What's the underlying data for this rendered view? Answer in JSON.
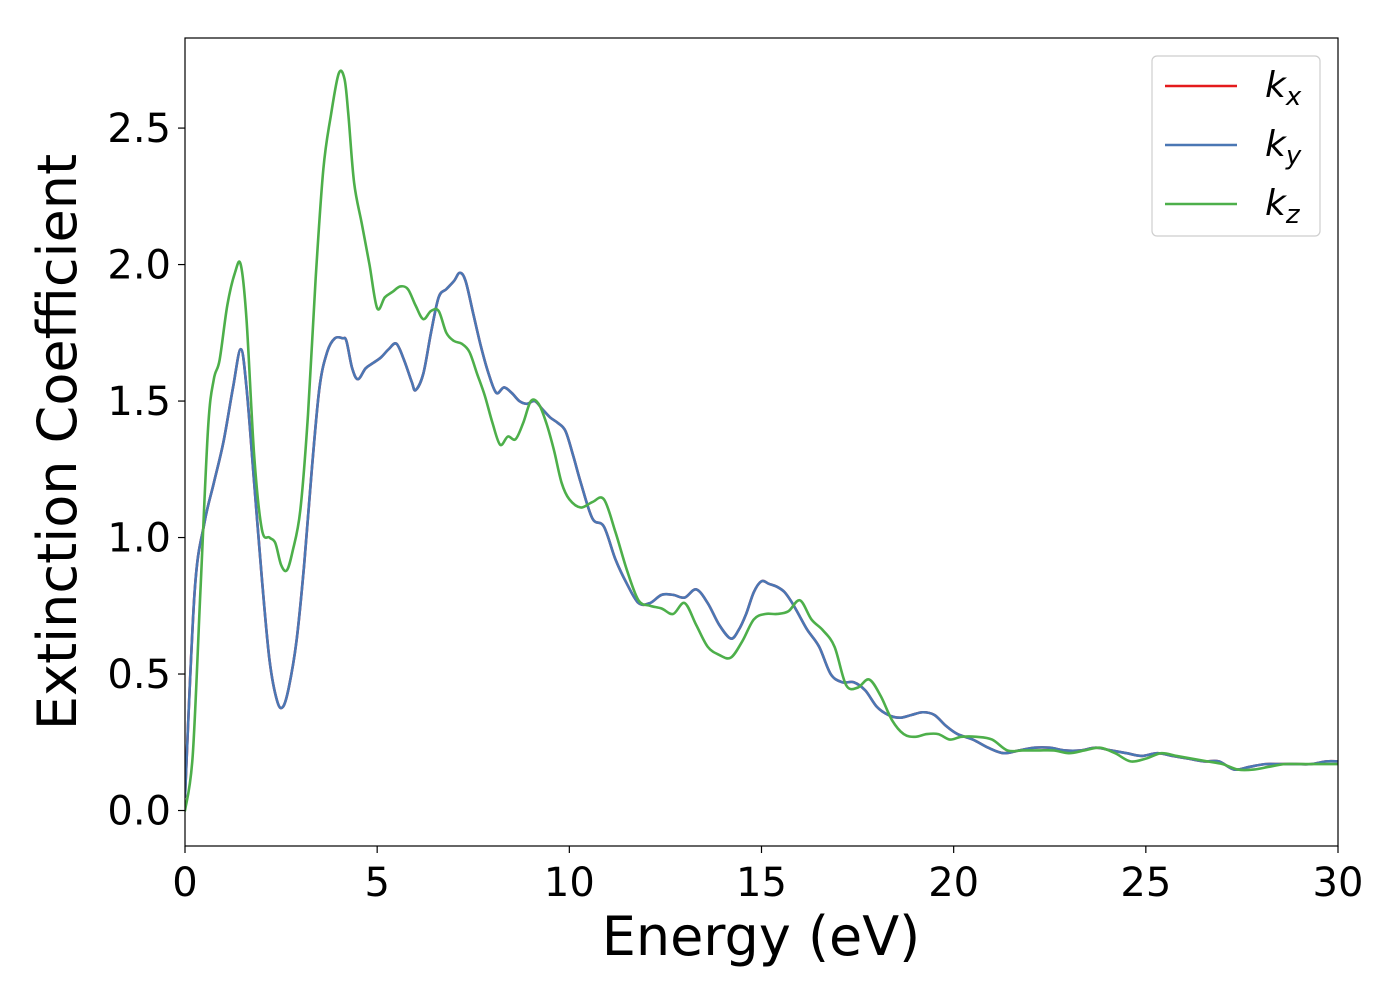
{
  "chart_data": {
    "type": "line",
    "xlabel": "Energy (eV)",
    "ylabel": "Extinction Coefficient",
    "xlim": [
      0,
      30
    ],
    "ylim": [
      -0.13,
      2.83
    ],
    "xticks": [
      0,
      5,
      10,
      15,
      20,
      25,
      30
    ],
    "yticks": [
      0.0,
      0.5,
      1.0,
      1.5,
      2.0,
      2.5
    ],
    "xtick_labels": [
      "0",
      "5",
      "10",
      "15",
      "20",
      "25",
      "30"
    ],
    "ytick_labels": [
      "0.0",
      "0.5",
      "1.0",
      "1.5",
      "2.0",
      "2.5"
    ],
    "grid": false,
    "legend_position": "top-right",
    "series": [
      {
        "name": "k_x",
        "legend_main": "k",
        "legend_sub": "x",
        "color": "#e41a1c",
        "x": [
          0,
          0.25,
          0.5,
          0.75,
          1.0,
          1.25,
          1.45,
          1.6,
          1.8,
          2.0,
          2.2,
          2.4,
          2.55,
          2.7,
          2.9,
          3.1,
          3.3,
          3.5,
          3.7,
          3.9,
          4.1,
          4.2,
          4.35,
          4.5,
          4.7,
          4.9,
          5.1,
          5.3,
          5.5,
          5.7,
          5.9,
          6.0,
          6.2,
          6.4,
          6.6,
          6.8,
          7.0,
          7.15,
          7.3,
          7.5,
          7.7,
          7.9,
          8.1,
          8.3,
          8.5,
          8.7,
          8.9,
          9.1,
          9.3,
          9.5,
          9.7,
          9.9,
          10.1,
          10.3,
          10.6,
          10.9,
          11.2,
          11.5,
          11.8,
          12.1,
          12.4,
          12.7,
          13.0,
          13.3,
          13.6,
          13.9,
          14.2,
          14.4,
          14.6,
          14.8,
          15.0,
          15.2,
          15.4,
          15.6,
          15.8,
          16.0,
          16.2,
          16.5,
          16.8,
          17.1,
          17.4,
          17.7,
          18.0,
          18.3,
          18.6,
          18.9,
          19.2,
          19.5,
          19.8,
          20.1,
          20.5,
          20.9,
          21.3,
          21.7,
          22.1,
          22.5,
          22.9,
          23.3,
          23.7,
          24.1,
          24.5,
          24.9,
          25.3,
          25.7,
          26.1,
          26.5,
          26.9,
          27.3,
          27.7,
          28.1,
          28.5,
          28.9,
          29.3,
          29.7,
          30.0
        ],
        "values": [
          0.05,
          0.8,
          1.05,
          1.2,
          1.35,
          1.55,
          1.69,
          1.55,
          1.2,
          0.85,
          0.55,
          0.4,
          0.38,
          0.45,
          0.62,
          0.9,
          1.25,
          1.55,
          1.68,
          1.73,
          1.73,
          1.72,
          1.62,
          1.58,
          1.62,
          1.64,
          1.66,
          1.69,
          1.71,
          1.65,
          1.57,
          1.54,
          1.6,
          1.75,
          1.88,
          1.91,
          1.94,
          1.97,
          1.94,
          1.82,
          1.7,
          1.6,
          1.53,
          1.55,
          1.53,
          1.5,
          1.49,
          1.5,
          1.47,
          1.44,
          1.42,
          1.39,
          1.3,
          1.2,
          1.07,
          1.04,
          0.92,
          0.83,
          0.76,
          0.76,
          0.79,
          0.79,
          0.78,
          0.81,
          0.76,
          0.68,
          0.63,
          0.66,
          0.72,
          0.8,
          0.84,
          0.83,
          0.82,
          0.8,
          0.76,
          0.71,
          0.66,
          0.6,
          0.5,
          0.47,
          0.47,
          0.44,
          0.38,
          0.35,
          0.34,
          0.35,
          0.36,
          0.35,
          0.31,
          0.28,
          0.26,
          0.23,
          0.21,
          0.22,
          0.23,
          0.23,
          0.22,
          0.22,
          0.23,
          0.22,
          0.21,
          0.2,
          0.21,
          0.2,
          0.19,
          0.18,
          0.18,
          0.15,
          0.16,
          0.17,
          0.17,
          0.17,
          0.17,
          0.18,
          0.18
        ]
      },
      {
        "name": "k_y",
        "legend_main": "k",
        "legend_sub": "y",
        "color": "#4a77b4",
        "x": [
          0,
          0.25,
          0.5,
          0.75,
          1.0,
          1.25,
          1.45,
          1.6,
          1.8,
          2.0,
          2.2,
          2.4,
          2.55,
          2.7,
          2.9,
          3.1,
          3.3,
          3.5,
          3.7,
          3.9,
          4.1,
          4.2,
          4.35,
          4.5,
          4.7,
          4.9,
          5.1,
          5.3,
          5.5,
          5.7,
          5.9,
          6.0,
          6.2,
          6.4,
          6.6,
          6.8,
          7.0,
          7.15,
          7.3,
          7.5,
          7.7,
          7.9,
          8.1,
          8.3,
          8.5,
          8.7,
          8.9,
          9.1,
          9.3,
          9.5,
          9.7,
          9.9,
          10.1,
          10.3,
          10.6,
          10.9,
          11.2,
          11.5,
          11.8,
          12.1,
          12.4,
          12.7,
          13.0,
          13.3,
          13.6,
          13.9,
          14.2,
          14.4,
          14.6,
          14.8,
          15.0,
          15.2,
          15.4,
          15.6,
          15.8,
          16.0,
          16.2,
          16.5,
          16.8,
          17.1,
          17.4,
          17.7,
          18.0,
          18.3,
          18.6,
          18.9,
          19.2,
          19.5,
          19.8,
          20.1,
          20.5,
          20.9,
          21.3,
          21.7,
          22.1,
          22.5,
          22.9,
          23.3,
          23.7,
          24.1,
          24.5,
          24.9,
          25.3,
          25.7,
          26.1,
          26.5,
          26.9,
          27.3,
          27.7,
          28.1,
          28.5,
          28.9,
          29.3,
          29.7,
          30.0
        ],
        "values": [
          0.05,
          0.8,
          1.05,
          1.2,
          1.35,
          1.55,
          1.69,
          1.55,
          1.2,
          0.85,
          0.55,
          0.4,
          0.38,
          0.45,
          0.62,
          0.9,
          1.25,
          1.55,
          1.68,
          1.73,
          1.73,
          1.72,
          1.62,
          1.58,
          1.62,
          1.64,
          1.66,
          1.69,
          1.71,
          1.65,
          1.57,
          1.54,
          1.6,
          1.75,
          1.88,
          1.91,
          1.94,
          1.97,
          1.94,
          1.82,
          1.7,
          1.6,
          1.53,
          1.55,
          1.53,
          1.5,
          1.49,
          1.5,
          1.47,
          1.44,
          1.42,
          1.39,
          1.3,
          1.2,
          1.07,
          1.04,
          0.92,
          0.83,
          0.76,
          0.76,
          0.79,
          0.79,
          0.78,
          0.81,
          0.76,
          0.68,
          0.63,
          0.66,
          0.72,
          0.8,
          0.84,
          0.83,
          0.82,
          0.8,
          0.76,
          0.71,
          0.66,
          0.6,
          0.5,
          0.47,
          0.47,
          0.44,
          0.38,
          0.35,
          0.34,
          0.35,
          0.36,
          0.35,
          0.31,
          0.28,
          0.26,
          0.23,
          0.21,
          0.22,
          0.23,
          0.23,
          0.22,
          0.22,
          0.23,
          0.22,
          0.21,
          0.2,
          0.21,
          0.2,
          0.19,
          0.18,
          0.18,
          0.15,
          0.16,
          0.17,
          0.17,
          0.17,
          0.17,
          0.18,
          0.18
        ]
      },
      {
        "name": "k_z",
        "legend_main": "k",
        "legend_sub": "z",
        "color": "#4daf4a",
        "x": [
          0,
          0.2,
          0.4,
          0.6,
          0.75,
          0.9,
          1.1,
          1.3,
          1.45,
          1.6,
          1.8,
          2.0,
          2.2,
          2.35,
          2.5,
          2.65,
          2.8,
          3.0,
          3.2,
          3.4,
          3.6,
          3.8,
          4.0,
          4.15,
          4.25,
          4.4,
          4.6,
          4.8,
          5.0,
          5.2,
          5.4,
          5.6,
          5.8,
          6.0,
          6.2,
          6.4,
          6.6,
          6.8,
          7.0,
          7.2,
          7.4,
          7.6,
          7.8,
          8.0,
          8.2,
          8.4,
          8.6,
          8.8,
          9.0,
          9.2,
          9.4,
          9.6,
          9.8,
          10.0,
          10.3,
          10.6,
          10.9,
          11.2,
          11.5,
          11.8,
          12.1,
          12.4,
          12.7,
          13.0,
          13.3,
          13.6,
          13.9,
          14.2,
          14.5,
          14.8,
          15.1,
          15.4,
          15.7,
          16.0,
          16.3,
          16.6,
          16.9,
          17.2,
          17.5,
          17.8,
          18.1,
          18.4,
          18.7,
          19.0,
          19.3,
          19.6,
          19.9,
          20.2,
          20.6,
          21.0,
          21.4,
          21.8,
          22.2,
          22.6,
          23.0,
          23.4,
          23.8,
          24.2,
          24.6,
          25.0,
          25.4,
          25.8,
          26.2,
          26.6,
          27.0,
          27.4,
          27.8,
          28.2,
          28.6,
          29.0,
          29.4,
          29.8,
          30.0
        ],
        "values": [
          0.0,
          0.2,
          0.8,
          1.4,
          1.58,
          1.65,
          1.85,
          1.97,
          2.0,
          1.8,
          1.3,
          1.03,
          1.0,
          0.98,
          0.9,
          0.88,
          0.95,
          1.1,
          1.45,
          1.95,
          2.35,
          2.55,
          2.7,
          2.68,
          2.55,
          2.3,
          2.15,
          2.0,
          1.84,
          1.88,
          1.9,
          1.92,
          1.91,
          1.85,
          1.8,
          1.83,
          1.83,
          1.75,
          1.72,
          1.71,
          1.68,
          1.6,
          1.52,
          1.42,
          1.34,
          1.37,
          1.36,
          1.42,
          1.5,
          1.49,
          1.42,
          1.32,
          1.2,
          1.14,
          1.11,
          1.13,
          1.14,
          1.02,
          0.88,
          0.77,
          0.75,
          0.74,
          0.72,
          0.76,
          0.68,
          0.6,
          0.57,
          0.56,
          0.62,
          0.7,
          0.72,
          0.72,
          0.73,
          0.77,
          0.7,
          0.66,
          0.6,
          0.46,
          0.45,
          0.48,
          0.42,
          0.33,
          0.28,
          0.27,
          0.28,
          0.28,
          0.26,
          0.27,
          0.27,
          0.26,
          0.22,
          0.22,
          0.22,
          0.22,
          0.21,
          0.22,
          0.23,
          0.21,
          0.18,
          0.19,
          0.21,
          0.2,
          0.19,
          0.18,
          0.17,
          0.15,
          0.15,
          0.16,
          0.17,
          0.17,
          0.17,
          0.17,
          0.17
        ]
      }
    ]
  }
}
